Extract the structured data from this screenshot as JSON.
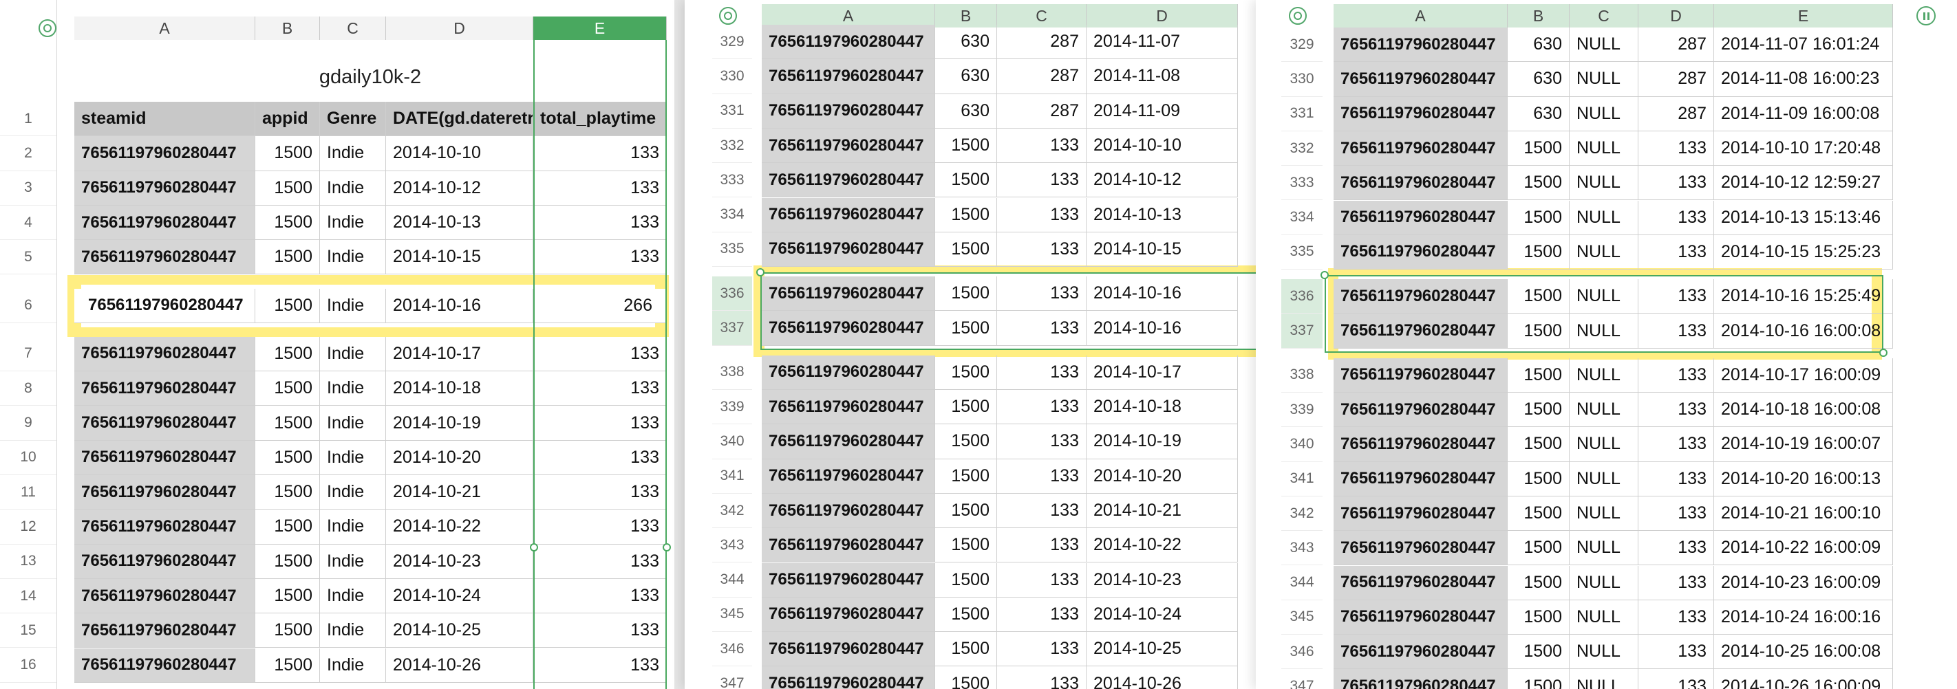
{
  "panel1": {
    "title": "gdaily10k-2",
    "columns": [
      "A",
      "B",
      "C",
      "D",
      "E"
    ],
    "header": [
      "steamid",
      "appid",
      "Genre",
      "DATE(gd.dateretr",
      "total_playtime"
    ],
    "rows": [
      {
        "n": "2",
        "id": "76561197960280447",
        "appid": "1500",
        "genre": "Indie",
        "date": "2014-10-10",
        "total": "133"
      },
      {
        "n": "3",
        "id": "76561197960280447",
        "appid": "1500",
        "genre": "Indie",
        "date": "2014-10-12",
        "total": "133"
      },
      {
        "n": "4",
        "id": "76561197960280447",
        "appid": "1500",
        "genre": "Indie",
        "date": "2014-10-13",
        "total": "133"
      },
      {
        "n": "5",
        "id": "76561197960280447",
        "appid": "1500",
        "genre": "Indie",
        "date": "2014-10-15",
        "total": "133"
      },
      {
        "n": "6",
        "id": "76561197960280447",
        "appid": "1500",
        "genre": "Indie",
        "date": "2014-10-16",
        "total": "266"
      },
      {
        "n": "7",
        "id": "76561197960280447",
        "appid": "1500",
        "genre": "Indie",
        "date": "2014-10-17",
        "total": "133"
      },
      {
        "n": "8",
        "id": "76561197960280447",
        "appid": "1500",
        "genre": "Indie",
        "date": "2014-10-18",
        "total": "133"
      },
      {
        "n": "9",
        "id": "76561197960280447",
        "appid": "1500",
        "genre": "Indie",
        "date": "2014-10-19",
        "total": "133"
      },
      {
        "n": "10",
        "id": "76561197960280447",
        "appid": "1500",
        "genre": "Indie",
        "date": "2014-10-20",
        "total": "133"
      },
      {
        "n": "11",
        "id": "76561197960280447",
        "appid": "1500",
        "genre": "Indie",
        "date": "2014-10-21",
        "total": "133"
      },
      {
        "n": "12",
        "id": "76561197960280447",
        "appid": "1500",
        "genre": "Indie",
        "date": "2014-10-22",
        "total": "133"
      },
      {
        "n": "13",
        "id": "76561197960280447",
        "appid": "1500",
        "genre": "Indie",
        "date": "2014-10-23",
        "total": "133"
      },
      {
        "n": "14",
        "id": "76561197960280447",
        "appid": "1500",
        "genre": "Indie",
        "date": "2014-10-24",
        "total": "133"
      },
      {
        "n": "15",
        "id": "76561197960280447",
        "appid": "1500",
        "genre": "Indie",
        "date": "2014-10-25",
        "total": "133"
      },
      {
        "n": "16",
        "id": "76561197960280447",
        "appid": "1500",
        "genre": "Indie",
        "date": "2014-10-26",
        "total": "133"
      }
    ],
    "header_row_number": "1"
  },
  "panel2": {
    "columns": [
      "A",
      "B",
      "C",
      "D"
    ],
    "rows": [
      {
        "n": "329",
        "id": "76561197960280447",
        "b": "630",
        "c": "287",
        "d": "2014-11-07"
      },
      {
        "n": "330",
        "id": "76561197960280447",
        "b": "630",
        "c": "287",
        "d": "2014-11-08"
      },
      {
        "n": "331",
        "id": "76561197960280447",
        "b": "630",
        "c": "287",
        "d": "2014-11-09"
      },
      {
        "n": "332",
        "id": "76561197960280447",
        "b": "1500",
        "c": "133",
        "d": "2014-10-10"
      },
      {
        "n": "333",
        "id": "76561197960280447",
        "b": "1500",
        "c": "133",
        "d": "2014-10-12"
      },
      {
        "n": "334",
        "id": "76561197960280447",
        "b": "1500",
        "c": "133",
        "d": "2014-10-13"
      },
      {
        "n": "335",
        "id": "76561197960280447",
        "b": "1500",
        "c": "133",
        "d": "2014-10-15"
      },
      {
        "n": "336",
        "id": "76561197960280447",
        "b": "1500",
        "c": "133",
        "d": "2014-10-16"
      },
      {
        "n": "337",
        "id": "76561197960280447",
        "b": "1500",
        "c": "133",
        "d": "2014-10-16"
      },
      {
        "n": "338",
        "id": "76561197960280447",
        "b": "1500",
        "c": "133",
        "d": "2014-10-17"
      },
      {
        "n": "339",
        "id": "76561197960280447",
        "b": "1500",
        "c": "133",
        "d": "2014-10-18"
      },
      {
        "n": "340",
        "id": "76561197960280447",
        "b": "1500",
        "c": "133",
        "d": "2014-10-19"
      },
      {
        "n": "341",
        "id": "76561197960280447",
        "b": "1500",
        "c": "133",
        "d": "2014-10-20"
      },
      {
        "n": "342",
        "id": "76561197960280447",
        "b": "1500",
        "c": "133",
        "d": "2014-10-21"
      },
      {
        "n": "343",
        "id": "76561197960280447",
        "b": "1500",
        "c": "133",
        "d": "2014-10-22"
      },
      {
        "n": "344",
        "id": "76561197960280447",
        "b": "1500",
        "c": "133",
        "d": "2014-10-23"
      },
      {
        "n": "345",
        "id": "76561197960280447",
        "b": "1500",
        "c": "133",
        "d": "2014-10-24"
      },
      {
        "n": "346",
        "id": "76561197960280447",
        "b": "1500",
        "c": "133",
        "d": "2014-10-25"
      },
      {
        "n": "347",
        "id": "76561197960280447",
        "b": "1500",
        "c": "133",
        "d": "2014-10-26"
      }
    ]
  },
  "panel3": {
    "columns": [
      "A",
      "B",
      "C",
      "D",
      "E"
    ],
    "rows": [
      {
        "n": "329",
        "id": "76561197960280447",
        "b": "630",
        "c": "NULL",
        "d": "287",
        "e": "2014-11-07 16:01:24"
      },
      {
        "n": "330",
        "id": "76561197960280447",
        "b": "630",
        "c": "NULL",
        "d": "287",
        "e": "2014-11-08 16:00:23"
      },
      {
        "n": "331",
        "id": "76561197960280447",
        "b": "630",
        "c": "NULL",
        "d": "287",
        "e": "2014-11-09 16:00:08"
      },
      {
        "n": "332",
        "id": "76561197960280447",
        "b": "1500",
        "c": "NULL",
        "d": "133",
        "e": "2014-10-10 17:20:48"
      },
      {
        "n": "333",
        "id": "76561197960280447",
        "b": "1500",
        "c": "NULL",
        "d": "133",
        "e": "2014-10-12 12:59:27"
      },
      {
        "n": "334",
        "id": "76561197960280447",
        "b": "1500",
        "c": "NULL",
        "d": "133",
        "e": "2014-10-13 15:13:46"
      },
      {
        "n": "335",
        "id": "76561197960280447",
        "b": "1500",
        "c": "NULL",
        "d": "133",
        "e": "2014-10-15 15:25:23"
      },
      {
        "n": "336",
        "id": "76561197960280447",
        "b": "1500",
        "c": "NULL",
        "d": "133",
        "e": "2014-10-16 15:25:49"
      },
      {
        "n": "337",
        "id": "76561197960280447",
        "b": "1500",
        "c": "NULL",
        "d": "133",
        "e": "2014-10-16 16:00:08"
      },
      {
        "n": "338",
        "id": "76561197960280447",
        "b": "1500",
        "c": "NULL",
        "d": "133",
        "e": "2014-10-17 16:00:09"
      },
      {
        "n": "339",
        "id": "76561197960280447",
        "b": "1500",
        "c": "NULL",
        "d": "133",
        "e": "2014-10-18 16:00:08"
      },
      {
        "n": "340",
        "id": "76561197960280447",
        "b": "1500",
        "c": "NULL",
        "d": "133",
        "e": "2014-10-19 16:00:07"
      },
      {
        "n": "341",
        "id": "76561197960280447",
        "b": "1500",
        "c": "NULL",
        "d": "133",
        "e": "2014-10-20 16:00:13"
      },
      {
        "n": "342",
        "id": "76561197960280447",
        "b": "1500",
        "c": "NULL",
        "d": "133",
        "e": "2014-10-21 16:00:10"
      },
      {
        "n": "343",
        "id": "76561197960280447",
        "b": "1500",
        "c": "NULL",
        "d": "133",
        "e": "2014-10-22 16:00:09"
      },
      {
        "n": "344",
        "id": "76561197960280447",
        "b": "1500",
        "c": "NULL",
        "d": "133",
        "e": "2014-10-23 16:00:09"
      },
      {
        "n": "345",
        "id": "76561197960280447",
        "b": "1500",
        "c": "NULL",
        "d": "133",
        "e": "2014-10-24 16:00:16"
      },
      {
        "n": "346",
        "id": "76561197960280447",
        "b": "1500",
        "c": "NULL",
        "d": "133",
        "e": "2014-10-25 16:00:08"
      },
      {
        "n": "347",
        "id": "76561197960280447",
        "b": "1500",
        "c": "NULL",
        "d": "133",
        "e": "2014-10-26 16:00:09"
      }
    ]
  },
  "colors": {
    "selection": "#49a85f",
    "highlight": "#ffee82",
    "id_cell": "#d6d6d6",
    "header_cell": "#c8c8c8"
  },
  "highlighted": {
    "panel1_row": "6",
    "panel2_rows": [
      "336",
      "337"
    ],
    "panel3_rows": [
      "336",
      "337"
    ]
  },
  "icons": [
    "select-all-circle-icon",
    "pause-icon"
  ]
}
